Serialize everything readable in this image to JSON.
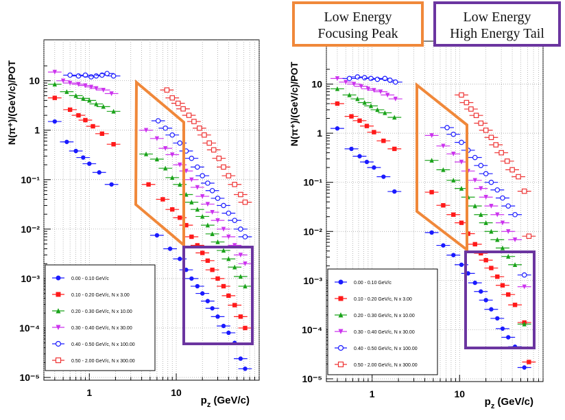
{
  "annotations": {
    "orange_box": {
      "line1": "Low Energy",
      "line2": "Focusing Peak",
      "color": "#f0883a"
    },
    "purple_box": {
      "line1": "Low Energy",
      "line2": "High Energy Tail",
      "color": "#6b35a0"
    }
  },
  "chart_data": [
    {
      "type": "scatter",
      "xlabel": "p_z (GeV/c)",
      "ylabel": "N(π⁺)/(GeV/c)/POT",
      "x_scale": "log",
      "y_scale": "log",
      "xlim": [
        0.3,
        90
      ],
      "ylim": [
        1e-05,
        22
      ],
      "x_ticks": [
        {
          "v": 1,
          "label": "1"
        },
        {
          "v": 10,
          "label": "10"
        }
      ],
      "y_ticks": [
        {
          "v": 10,
          "label": "10"
        },
        {
          "v": 1,
          "label": "1"
        },
        {
          "v": 0.1,
          "label": "10⁻¹"
        },
        {
          "v": 0.01,
          "label": "10⁻²"
        },
        {
          "v": 0.001,
          "label": "10⁻³"
        },
        {
          "v": 0.0001,
          "label": "10⁻⁴"
        },
        {
          "v": 1e-05,
          "label": "10⁻⁵"
        }
      ],
      "grid": true,
      "legend_position": "bottom-left",
      "series": [
        {
          "name": "0.00 - 0.10 GeV/c",
          "color": "#1a1aff",
          "marker": "circle",
          "x": [
            0.4,
            0.55,
            0.7,
            0.85,
            1.0,
            1.3,
            1.8,
            6,
            8.5,
            11,
            13,
            15,
            17.5,
            20,
            23,
            26,
            30,
            35,
            40,
            47,
            55,
            62
          ],
          "y": [
            1.5,
            0.58,
            0.38,
            0.28,
            0.21,
            0.14,
            0.08,
            0.0075,
            0.004,
            0.0025,
            0.0015,
            0.001,
            0.0007,
            0.0005,
            0.00035,
            0.00025,
            0.00017,
            0.00011,
            8e-05,
            5e-05,
            2.4e-05,
            1.5e-05
          ]
        },
        {
          "name": "0.10 - 0.20 GeV/c, N x 3.00",
          "color": "#ff1a1a",
          "marker": "square",
          "x": [
            0.4,
            0.6,
            0.75,
            0.9,
            1.1,
            1.4,
            1.9,
            4.8,
            7,
            9,
            11,
            13,
            15,
            17.5,
            20,
            23,
            26,
            30,
            35,
            40,
            47,
            55,
            62
          ],
          "y": [
            4.5,
            2.6,
            2.0,
            1.6,
            1.2,
            0.85,
            0.52,
            0.08,
            0.04,
            0.025,
            0.017,
            0.012,
            0.007,
            0.0047,
            0.0033,
            0.0023,
            0.0015,
            0.001,
            0.0007,
            0.00045,
            0.00029,
            0.00017,
            0.0001
          ]
        },
        {
          "name": "0.20 - 0.30 GeV/c, N x 10.00",
          "color": "#1aa31a",
          "marker": "triangle",
          "x": [
            0.4,
            0.55,
            0.7,
            0.85,
            1.0,
            1.2,
            1.45,
            1.9,
            4.5,
            6,
            7.5,
            9,
            11,
            13,
            15,
            17.5,
            20,
            23,
            26,
            30,
            35,
            40,
            47,
            55,
            62
          ],
          "y": [
            8.5,
            6.0,
            5.0,
            4.4,
            4.0,
            3.4,
            3.0,
            2.4,
            0.33,
            0.26,
            0.17,
            0.11,
            0.08,
            0.05,
            0.035,
            0.025,
            0.018,
            0.012,
            0.008,
            0.0055,
            0.0037,
            0.0025,
            0.0017,
            0.0011,
            0.0007
          ]
        },
        {
          "name": "0.30 - 0.40 GeV/c, N x 30.00",
          "color": "#cc33ee",
          "marker": "triangle-down",
          "x": [
            0.4,
            0.5,
            0.6,
            0.75,
            0.9,
            1.05,
            1.2,
            1.45,
            1.8,
            4.5,
            6,
            7.5,
            9,
            11,
            13,
            15,
            17.5,
            20,
            23,
            26,
            30,
            35,
            40,
            47,
            55,
            62
          ],
          "y": [
            15,
            10,
            9.0,
            8.5,
            8.0,
            7.5,
            7.0,
            6.5,
            5.5,
            1.0,
            0.68,
            0.43,
            0.32,
            0.2,
            0.15,
            0.1,
            0.07,
            0.046,
            0.032,
            0.022,
            0.015,
            0.01,
            0.007,
            0.0047,
            0.003,
            0.002
          ]
        },
        {
          "name": "0.40 - 0.50 GeV/c, N x 100.00",
          "color": "#1a1aff",
          "marker": "open-circle",
          "x": [
            0.6,
            0.75,
            0.9,
            1.05,
            1.2,
            1.4,
            1.6,
            1.9,
            6.2,
            7.5,
            9,
            11,
            13,
            15,
            17.5,
            20,
            23,
            26,
            30,
            35,
            40,
            47,
            55,
            62
          ],
          "y": [
            13,
            12.5,
            13,
            12,
            12.5,
            13,
            14,
            12.5,
            1.55,
            1.1,
            0.8,
            0.55,
            0.38,
            0.27,
            0.18,
            0.12,
            0.085,
            0.06,
            0.042,
            0.03,
            0.021,
            0.015,
            0.01,
            0.007
          ]
        },
        {
          "name": "0.50 - 2.00 GeV/c, N x 300.00",
          "color": "#ee3333",
          "marker": "open-square",
          "x": [
            7.8,
            9,
            10.5,
            12,
            14,
            16,
            18.5,
            21,
            24,
            27,
            31,
            35,
            40,
            47,
            55,
            62
          ],
          "y": [
            6.5,
            4.5,
            3.5,
            2.7,
            2.0,
            1.5,
            1.1,
            0.8,
            0.55,
            0.4,
            0.27,
            0.18,
            0.12,
            0.08,
            0.05,
            0.035
          ]
        }
      ]
    },
    {
      "type": "scatter",
      "xlabel": "p_z (GeV/c)",
      "ylabel": "N(π⁺)/(GeV/c)/POT",
      "x_scale": "log",
      "y_scale": "log",
      "xlim": [
        0.3,
        90
      ],
      "ylim": [
        1e-05,
        22
      ],
      "x_ticks": [
        {
          "v": 1,
          "label": "1"
        },
        {
          "v": 10,
          "label": "10"
        }
      ],
      "y_ticks": [
        {
          "v": 10,
          "label": "10"
        },
        {
          "v": 1,
          "label": "1"
        },
        {
          "v": 0.1,
          "label": "10⁻¹"
        },
        {
          "v": 0.01,
          "label": "10⁻²"
        },
        {
          "v": 0.001,
          "label": "10⁻³"
        },
        {
          "v": 0.0001,
          "label": "10⁻⁴"
        },
        {
          "v": 1e-05,
          "label": "10⁻⁵"
        }
      ],
      "grid": true,
      "legend_position": "bottom-left",
      "series": [
        {
          "name": "0.00 - 0.10 GeV/c",
          "color": "#1a1aff",
          "marker": "circle",
          "x": [
            0.4,
            0.58,
            0.72,
            0.87,
            1.05,
            1.35,
            1.8,
            4.8,
            6.5,
            8.5,
            10.5,
            12.5,
            15,
            17.5,
            20,
            23,
            27,
            31,
            36,
            43,
            55
          ],
          "y": [
            1.25,
            0.48,
            0.34,
            0.26,
            0.2,
            0.13,
            0.065,
            0.0095,
            0.0052,
            0.0033,
            0.0021,
            0.0014,
            0.0009,
            0.0006,
            0.0004,
            0.00026,
            0.00017,
            0.000105,
            7e-05,
            4.5e-05,
            1.7e-05
          ]
        },
        {
          "name": "0.10 - 0.20 GeV/c, N x 3.00",
          "color": "#ff1a1a",
          "marker": "square",
          "x": [
            0.4,
            0.58,
            0.72,
            0.87,
            1.05,
            1.35,
            1.8,
            4.8,
            6.5,
            8.5,
            10.5,
            12.5,
            15,
            17.5,
            20,
            23,
            27,
            31,
            36,
            43,
            55,
            62
          ],
          "y": [
            4.0,
            2.2,
            1.8,
            1.4,
            1.05,
            0.7,
            0.48,
            0.063,
            0.034,
            0.022,
            0.015,
            0.009,
            0.0055,
            0.0036,
            0.0026,
            0.0018,
            0.0012,
            0.0008,
            0.00052,
            0.00032,
            0.00014,
            2.2e-05
          ]
        },
        {
          "name": "0.20 - 0.30 GeV/c, N x 10.00",
          "color": "#1aa31a",
          "marker": "triangle",
          "x": [
            0.4,
            0.55,
            0.68,
            0.82,
            0.97,
            1.15,
            1.4,
            1.8,
            4.8,
            6.5,
            8.5,
            10.5,
            12.5,
            15,
            17.5,
            20,
            23,
            27,
            31,
            36,
            43,
            55
          ],
          "y": [
            8.0,
            6.0,
            5.0,
            4.2,
            3.6,
            3.0,
            2.6,
            2.1,
            0.28,
            0.18,
            0.11,
            0.075,
            0.05,
            0.033,
            0.022,
            0.015,
            0.01,
            0.0068,
            0.0046,
            0.0031,
            0.0021,
            0.00013
          ]
        },
        {
          "name": "0.30 - 0.40 GeV/c, N x 30.00",
          "color": "#cc33ee",
          "marker": "triangle-down",
          "x": [
            0.4,
            0.5,
            0.62,
            0.75,
            0.9,
            1.05,
            1.25,
            1.5,
            1.85,
            4.8,
            6.5,
            8.5,
            10.5,
            12.5,
            15,
            17.5,
            20,
            23,
            27,
            31,
            36,
            43,
            55
          ],
          "y": [
            13,
            11,
            10,
            9.0,
            8.0,
            7.5,
            7.0,
            6.0,
            5.0,
            0.9,
            0.55,
            0.38,
            0.26,
            0.17,
            0.11,
            0.075,
            0.05,
            0.033,
            0.022,
            0.015,
            0.01,
            0.0068,
            0.00075
          ]
        },
        {
          "name": "0.40 - 0.50 GeV/c, N x 100.00",
          "color": "#1a1aff",
          "marker": "open-circle",
          "x": [
            0.55,
            0.68,
            0.82,
            0.97,
            1.15,
            1.4,
            1.6,
            1.85,
            7.2,
            8.5,
            10.5,
            12.5,
            15,
            17.5,
            20,
            23,
            27,
            31,
            36,
            43,
            55
          ],
          "y": [
            13,
            14,
            13.5,
            13,
            12.5,
            13,
            12,
            11,
            1.3,
            0.95,
            0.65,
            0.45,
            0.32,
            0.22,
            0.15,
            0.1,
            0.07,
            0.048,
            0.033,
            0.022,
            0.0013
          ]
        },
        {
          "name": "0.50 - 2.00 GeV/c, N x 300.00",
          "color": "#ee3333",
          "marker": "open-square",
          "x": [
            10.5,
            12,
            13.5,
            15.5,
            17.5,
            20,
            23,
            26,
            30,
            35,
            40,
            47,
            55,
            62
          ],
          "y": [
            6.0,
            4.2,
            3.1,
            2.3,
            1.6,
            1.15,
            0.82,
            0.58,
            0.4,
            0.27,
            0.18,
            0.13,
            0.066,
            0.008
          ]
        }
      ]
    }
  ]
}
